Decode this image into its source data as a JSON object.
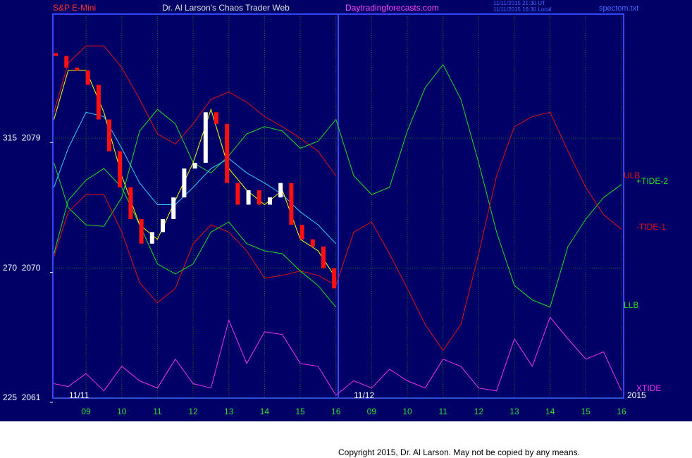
{
  "chart_data": {
    "type": "line",
    "instrument": "S&P E-Mini",
    "title": "Dr. Al Larson's Chaos Trader Web",
    "site": "Daytradingforecasts.com",
    "timestamps": [
      "11/11/2015 21:30 UT",
      "11/11/2015 16:30 Local"
    ],
    "file": "spectom.txt",
    "copyright": "Copyright 2015, Dr. Al Larson. May not be copied by any means.",
    "annotations": [
      "11/11",
      "11/12",
      "2015"
    ],
    "xlim": [
      0.07,
      16.06
    ],
    "xticks": [
      {
        "value": 1,
        "label": "09"
      },
      {
        "value": 2,
        "label": "10"
      },
      {
        "value": 3,
        "label": "11"
      },
      {
        "value": 4,
        "label": "12"
      },
      {
        "value": 5,
        "label": "13"
      },
      {
        "value": 6,
        "label": "14"
      },
      {
        "value": 7,
        "label": "15"
      },
      {
        "value": 8,
        "label": "16"
      },
      {
        "value": 9,
        "label": "09"
      },
      {
        "value": 10,
        "label": "10"
      },
      {
        "value": 11,
        "label": "11"
      },
      {
        "value": 12,
        "label": "12"
      },
      {
        "value": 13,
        "label": "13"
      },
      {
        "value": 14,
        "label": "14"
      },
      {
        "value": 15,
        "label": "15"
      },
      {
        "value": 16,
        "label": "16"
      }
    ],
    "ylim": [
      2061,
      2087.6
    ],
    "yticks": [
      {
        "value": 2079,
        "label": "315  2079"
      },
      {
        "value": 2070,
        "label": "270  2070"
      },
      {
        "value": 2061,
        "label": "225  2061"
      }
    ],
    "grid": true,
    "x": [
      0.1,
      0.5,
      1,
      1.5,
      2,
      2.5,
      3,
      3.5,
      4,
      4.5,
      5,
      5.5,
      6,
      6.5,
      7,
      7.5,
      8,
      8.5,
      9,
      9.5,
      10,
      10.5,
      11,
      11.5,
      12,
      12.5,
      13,
      13.5,
      14,
      14.5,
      15,
      15.5,
      16
    ],
    "series": [
      {
        "name": "ULB",
        "color": "#e01010",
        "values": [
          2080.8,
          2084.2,
          2085.4,
          2085.4,
          2083.9,
          2081.7,
          2079.3,
          2078.6,
          2080.0,
          2081.7,
          2082.2,
          2081.5,
          2080.5,
          2079.8,
          2079.0,
          2078.1,
          2076.4,
          null,
          null,
          null,
          null,
          null,
          null,
          null,
          null,
          null,
          null,
          null,
          null,
          null,
          null,
          null,
          null
        ]
      },
      {
        "name": "+TIDE-2",
        "color": "#22dd22",
        "values": [
          2077.3,
          2074.2,
          2073.0,
          2072.9,
          2074.9,
          2079.5,
          2081.0,
          2080.0,
          2077.3,
          2076.6,
          2077.8,
          2079.3,
          2079.8,
          2079.5,
          2078.3,
          2078.8,
          2080.3,
          2076.4,
          2075.1,
          2075.6,
          2079.5,
          2082.5,
          2084.1,
          2081.7,
          2077.3,
          2072.5,
          2068.8,
          2067.8,
          2067.3,
          2071.5,
          2073.4,
          2074.9,
          2075.8
        ]
      },
      {
        "name": "-TIDE-1",
        "color": "#e01010",
        "values": [
          2070.8,
          2073.9,
          2075.1,
          2075.1,
          2072.5,
          2069.0,
          2067.6,
          2068.6,
          2071.7,
          2073.0,
          2072.5,
          2071.2,
          2069.3,
          2069.5,
          2069.8,
          2069.5,
          2068.8,
          2072.5,
          2073.2,
          2071.0,
          2068.6,
          2066.1,
          2064.3,
          2066.1,
          2071.0,
          2076.4,
          2079.8,
          2080.5,
          2080.8,
          2078.1,
          2075.6,
          2073.7,
          2072.7
        ]
      },
      {
        "name": "LLB",
        "color": "#22dd22",
        "values": [
          2071.0,
          2074.7,
          2076.1,
          2076.9,
          2075.6,
          2073.0,
          2070.3,
          2069.6,
          2070.3,
          2072.5,
          2073.2,
          2071.7,
          2071.2,
          2071.0,
          2069.8,
          2068.8,
          2067.3,
          null,
          null,
          null,
          null,
          null,
          null,
          null,
          null,
          null,
          null,
          null,
          null,
          null,
          null,
          null,
          null
        ]
      },
      {
        "name": "XTIDE",
        "color": "#ee33ee",
        "values": [
          2062.0,
          2061.8,
          2062.7,
          2061.5,
          2063.2,
          2062.2,
          2061.7,
          2063.7,
          2062.0,
          2061.7,
          2066.4,
          2063.4,
          2065.6,
          2065.4,
          2063.4,
          2063.2,
          2061.2,
          2062.2,
          2061.7,
          2063.0,
          2062.2,
          2061.7,
          2063.7,
          2063.2,
          2061.7,
          2061.5,
          2065.1,
          2063.2,
          2066.6,
          2065.1,
          2063.7,
          2064.2,
          2061.5
        ]
      },
      {
        "color": "#33ccff",
        "values": [
          2075.6,
          2078.3,
          2080.8,
          2080.5,
          2078.3,
          2075.9,
          2074.4,
          2074.4,
          2075.6,
          2076.9,
          2077.6,
          2076.6,
          2075.9,
          2075.1,
          2073.9,
          2073.0,
          2071.7,
          null,
          null,
          null,
          null,
          null,
          null,
          null,
          null,
          null,
          null,
          null,
          null,
          null,
          null,
          null,
          null
        ]
      },
      {
        "color": "#ffff00",
        "values": [
          2080.3,
          2083.7,
          2083.7,
          2080.8,
          2076.4,
          2073.0,
          2072.0,
          2074.7,
          2077.3,
          2081.0,
          2076.9,
          2075.4,
          2074.4,
          2075.4,
          2072.0,
          2071.2,
          2069.3,
          null,
          null,
          null,
          null,
          null,
          null,
          null,
          null,
          null,
          null,
          null,
          null,
          null,
          null,
          null,
          null
        ]
      }
    ],
    "candles": {
      "x": [
        0.15,
        0.45,
        0.75,
        1.05,
        1.35,
        1.65,
        1.95,
        2.25,
        2.55,
        2.85,
        3.15,
        3.45,
        3.75,
        4.05,
        4.35,
        4.65,
        4.95,
        5.25,
        5.55,
        5.85,
        6.15,
        6.45,
        6.75,
        7.05,
        7.35,
        7.65,
        7.95
      ],
      "open": [
        2084.9,
        2084.7,
        2083.9,
        2083.7,
        2082.7,
        2080.3,
        2078.1,
        2075.6,
        2073.4,
        2071.7,
        2072.5,
        2073.4,
        2074.9,
        2076.9,
        2077.3,
        2080.8,
        2080.0,
        2075.9,
        2074.4,
        2075.4,
        2074.4,
        2074.9,
        2075.9,
        2073.0,
        2072.0,
        2071.5,
        2070.0
      ],
      "close": [
        2084.7,
        2083.9,
        2083.7,
        2082.7,
        2080.3,
        2078.1,
        2075.6,
        2073.4,
        2071.7,
        2072.5,
        2073.4,
        2074.9,
        2076.9,
        2077.3,
        2080.8,
        2080.0,
        2075.9,
        2074.4,
        2075.4,
        2074.4,
        2074.9,
        2075.9,
        2073.0,
        2072.0,
        2071.5,
        2070.0,
        2068.6
      ],
      "up_color": "#ffffff",
      "down_color": "#ff1010"
    }
  }
}
